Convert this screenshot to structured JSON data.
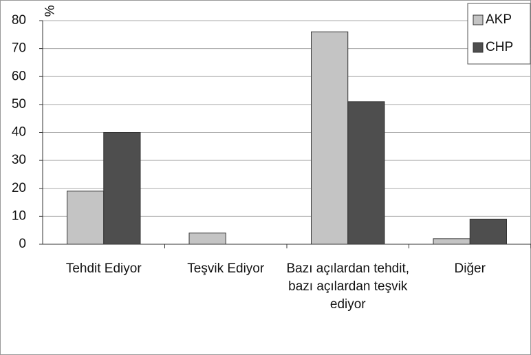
{
  "chart_data": {
    "type": "bar",
    "y_label": "%",
    "categories": [
      "Tehdit Ediyor",
      "Teşvik Ediyor",
      "Bazı açılardan tehdit, bazı açılardan teşvik ediyor",
      "Diğer"
    ],
    "series": [
      {
        "name": "AKP",
        "color": "#c4c4c4",
        "values": [
          19,
          4,
          76,
          2
        ]
      },
      {
        "name": "CHP",
        "color": "#4e4e4e",
        "values": [
          40,
          0,
          51,
          9
        ]
      }
    ],
    "ylim": [
      0,
      80
    ],
    "yticks": [
      0,
      10,
      20,
      30,
      40,
      50,
      60,
      70,
      80
    ],
    "grid": true,
    "legend": "top-right"
  }
}
